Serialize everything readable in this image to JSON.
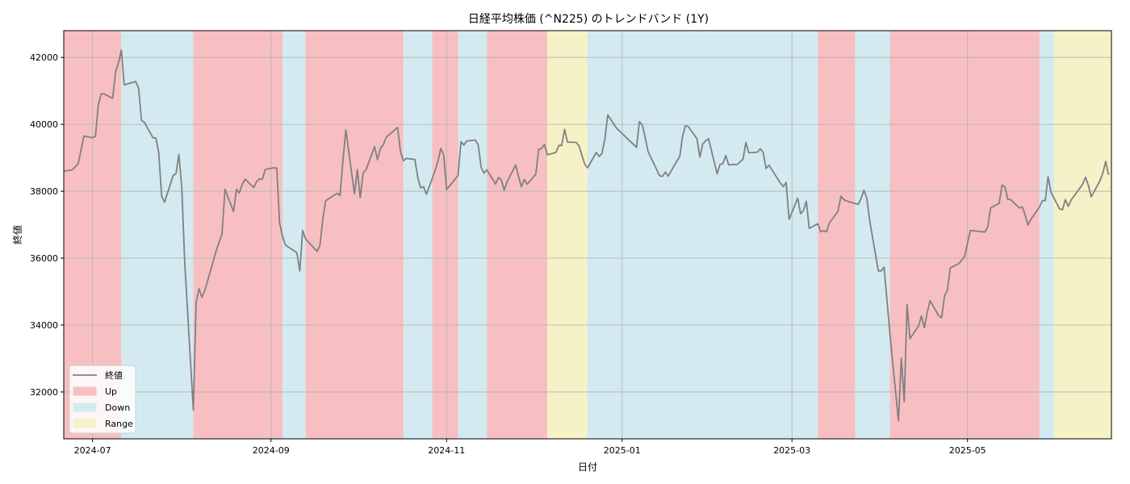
{
  "chart_data": {
    "type": "line",
    "title": "日経平均株価 (^N225) のトレンドバンド (1Y)",
    "xlabel": "日付",
    "ylabel": "終値",
    "xlim": [
      "2024-06-21",
      "2025-06-20"
    ],
    "ylim": [
      30600,
      42800
    ],
    "grid": true,
    "legend_position": "bottom-left",
    "x_ticks": [
      "2024-07",
      "2024-09",
      "2024-11",
      "2025-01",
      "2025-03",
      "2025-05"
    ],
    "y_ticks": [
      32000,
      34000,
      36000,
      38000,
      40000,
      42000
    ],
    "colors": {
      "line": "#808080",
      "up": "#f7bfc2",
      "down": "#d3eaf0",
      "range": "#f6f1c6",
      "grid": "#b0b0b0"
    },
    "legend": [
      {
        "label": "終値",
        "kind": "line"
      },
      {
        "label": "Up",
        "kind": "up"
      },
      {
        "label": "Down",
        "kind": "down"
      },
      {
        "label": "Range",
        "kind": "range"
      }
    ],
    "bands": [
      {
        "start": "2024-06-21",
        "end": "2024-07-11",
        "regime": "up"
      },
      {
        "start": "2024-07-11",
        "end": "2024-08-05",
        "regime": "down"
      },
      {
        "start": "2024-08-05",
        "end": "2024-09-05",
        "regime": "up"
      },
      {
        "start": "2024-09-05",
        "end": "2024-09-13",
        "regime": "down"
      },
      {
        "start": "2024-09-13",
        "end": "2024-10-17",
        "regime": "up"
      },
      {
        "start": "2024-10-17",
        "end": "2024-10-27",
        "regime": "down"
      },
      {
        "start": "2024-10-27",
        "end": "2024-11-05",
        "regime": "up"
      },
      {
        "start": "2024-11-05",
        "end": "2024-11-15",
        "regime": "down"
      },
      {
        "start": "2024-11-15",
        "end": "2024-12-06",
        "regime": "up"
      },
      {
        "start": "2024-12-06",
        "end": "2024-12-20",
        "regime": "range"
      },
      {
        "start": "2024-12-20",
        "end": "2025-03-10",
        "regime": "down"
      },
      {
        "start": "2025-03-10",
        "end": "2025-03-23",
        "regime": "up"
      },
      {
        "start": "2025-03-23",
        "end": "2025-04-04",
        "regime": "down"
      },
      {
        "start": "2025-04-04",
        "end": "2025-05-26",
        "regime": "up"
      },
      {
        "start": "2025-05-26",
        "end": "2025-05-31",
        "regime": "down"
      },
      {
        "start": "2025-05-31",
        "end": "2025-06-20",
        "regime": "range"
      }
    ],
    "series": [
      {
        "name": "終値",
        "points": [
          [
            "2024-06-21",
            38600
          ],
          [
            "2024-06-24",
            38640
          ],
          [
            "2024-06-26",
            38820
          ],
          [
            "2024-06-28",
            39650
          ],
          [
            "2024-07-01",
            39600
          ],
          [
            "2024-07-02",
            39640
          ],
          [
            "2024-07-03",
            40580
          ],
          [
            "2024-07-04",
            40910
          ],
          [
            "2024-07-05",
            40910
          ],
          [
            "2024-07-08",
            40780
          ],
          [
            "2024-07-09",
            41580
          ],
          [
            "2024-07-10",
            41830
          ],
          [
            "2024-07-11",
            42220
          ],
          [
            "2024-07-12",
            41180
          ],
          [
            "2024-07-16",
            41280
          ],
          [
            "2024-07-17",
            41080
          ],
          [
            "2024-07-18",
            40120
          ],
          [
            "2024-07-19",
            40060
          ],
          [
            "2024-07-22",
            39600
          ],
          [
            "2024-07-23",
            39590
          ],
          [
            "2024-07-24",
            39150
          ],
          [
            "2024-07-25",
            37870
          ],
          [
            "2024-07-26",
            37670
          ],
          [
            "2024-07-29",
            38470
          ],
          [
            "2024-07-30",
            38530
          ],
          [
            "2024-07-31",
            39100
          ],
          [
            "2024-08-01",
            38120
          ],
          [
            "2024-08-02",
            35910
          ],
          [
            "2024-08-05",
            31460
          ],
          [
            "2024-08-06",
            34680
          ],
          [
            "2024-08-07",
            35090
          ],
          [
            "2024-08-08",
            34830
          ],
          [
            "2024-08-09",
            35030
          ],
          [
            "2024-08-13",
            36230
          ],
          [
            "2024-08-15",
            36730
          ],
          [
            "2024-08-16",
            38060
          ],
          [
            "2024-08-19",
            37390
          ],
          [
            "2024-08-20",
            38060
          ],
          [
            "2024-08-21",
            37950
          ],
          [
            "2024-08-22",
            38210
          ],
          [
            "2024-08-23",
            38360
          ],
          [
            "2024-08-26",
            38110
          ],
          [
            "2024-08-27",
            38290
          ],
          [
            "2024-08-28",
            38370
          ],
          [
            "2024-08-29",
            38360
          ],
          [
            "2024-08-30",
            38650
          ],
          [
            "2024-09-02",
            38700
          ],
          [
            "2024-09-03",
            38690
          ],
          [
            "2024-09-04",
            37050
          ],
          [
            "2024-09-05",
            36660
          ],
          [
            "2024-09-06",
            36390
          ],
          [
            "2024-09-09",
            36220
          ],
          [
            "2024-09-10",
            36160
          ],
          [
            "2024-09-11",
            35620
          ],
          [
            "2024-09-12",
            36830
          ],
          [
            "2024-09-13",
            36580
          ],
          [
            "2024-09-17",
            36200
          ],
          [
            "2024-09-18",
            36380
          ],
          [
            "2024-09-19",
            37160
          ],
          [
            "2024-09-20",
            37720
          ],
          [
            "2024-09-24",
            37940
          ],
          [
            "2024-09-25",
            37870
          ],
          [
            "2024-09-26",
            38930
          ],
          [
            "2024-09-27",
            39830
          ],
          [
            "2024-09-30",
            37920
          ],
          [
            "2024-10-01",
            38650
          ],
          [
            "2024-10-02",
            37810
          ],
          [
            "2024-10-03",
            38550
          ],
          [
            "2024-10-04",
            38640
          ],
          [
            "2024-10-07",
            39330
          ],
          [
            "2024-10-08",
            38940
          ],
          [
            "2024-10-09",
            39280
          ],
          [
            "2024-10-10",
            39380
          ],
          [
            "2024-10-11",
            39610
          ],
          [
            "2024-10-15",
            39910
          ],
          [
            "2024-10-16",
            39180
          ],
          [
            "2024-10-17",
            38910
          ],
          [
            "2024-10-18",
            38980
          ],
          [
            "2024-10-21",
            38950
          ],
          [
            "2024-10-22",
            38410
          ],
          [
            "2024-10-23",
            38100
          ],
          [
            "2024-10-24",
            38140
          ],
          [
            "2024-10-25",
            37910
          ],
          [
            "2024-10-28",
            38610
          ],
          [
            "2024-10-29",
            38900
          ],
          [
            "2024-10-30",
            39280
          ],
          [
            "2024-10-31",
            39080
          ],
          [
            "2024-11-01",
            38050
          ],
          [
            "2024-11-05",
            38470
          ],
          [
            "2024-11-06",
            39480
          ],
          [
            "2024-11-07",
            39380
          ],
          [
            "2024-11-08",
            39500
          ],
          [
            "2024-11-11",
            39530
          ],
          [
            "2024-11-12",
            39380
          ],
          [
            "2024-11-13",
            38720
          ],
          [
            "2024-11-14",
            38540
          ],
          [
            "2024-11-15",
            38640
          ],
          [
            "2024-11-18",
            38220
          ],
          [
            "2024-11-19",
            38410
          ],
          [
            "2024-11-20",
            38350
          ],
          [
            "2024-11-21",
            38030
          ],
          [
            "2024-11-22",
            38280
          ],
          [
            "2024-11-25",
            38780
          ],
          [
            "2024-11-26",
            38440
          ],
          [
            "2024-11-27",
            38130
          ],
          [
            "2024-11-28",
            38350
          ],
          [
            "2024-11-29",
            38210
          ],
          [
            "2024-12-02",
            38510
          ],
          [
            "2024-12-03",
            39250
          ],
          [
            "2024-12-04",
            39280
          ],
          [
            "2024-12-05",
            39400
          ],
          [
            "2024-12-06",
            39090
          ],
          [
            "2024-12-09",
            39160
          ],
          [
            "2024-12-10",
            39370
          ],
          [
            "2024-12-11",
            39370
          ],
          [
            "2024-12-12",
            39850
          ],
          [
            "2024-12-13",
            39470
          ],
          [
            "2024-12-16",
            39460
          ],
          [
            "2024-12-17",
            39360
          ],
          [
            "2024-12-18",
            39080
          ],
          [
            "2024-12-19",
            38810
          ],
          [
            "2024-12-20",
            38700
          ],
          [
            "2024-12-23",
            39160
          ],
          [
            "2024-12-24",
            39040
          ],
          [
            "2024-12-25",
            39130
          ],
          [
            "2024-12-26",
            39570
          ],
          [
            "2024-12-27",
            40280
          ],
          [
            "2024-12-30",
            39890
          ],
          [
            "2025-01-06",
            39310
          ],
          [
            "2025-01-07",
            40080
          ],
          [
            "2025-01-08",
            39980
          ],
          [
            "2025-01-09",
            39610
          ],
          [
            "2025-01-10",
            39190
          ],
          [
            "2025-01-14",
            38470
          ],
          [
            "2025-01-15",
            38440
          ],
          [
            "2025-01-16",
            38570
          ],
          [
            "2025-01-17",
            38450
          ],
          [
            "2025-01-20",
            38900
          ],
          [
            "2025-01-21",
            39030
          ],
          [
            "2025-01-22",
            39650
          ],
          [
            "2025-01-23",
            39960
          ],
          [
            "2025-01-24",
            39930
          ],
          [
            "2025-01-27",
            39570
          ],
          [
            "2025-01-28",
            39020
          ],
          [
            "2025-01-29",
            39410
          ],
          [
            "2025-01-30",
            39510
          ],
          [
            "2025-01-31",
            39570
          ],
          [
            "2025-02-03",
            38520
          ],
          [
            "2025-02-04",
            38800
          ],
          [
            "2025-02-05",
            38830
          ],
          [
            "2025-02-06",
            39070
          ],
          [
            "2025-02-07",
            38790
          ],
          [
            "2025-02-10",
            38800
          ],
          [
            "2025-02-12",
            38960
          ],
          [
            "2025-02-13",
            39460
          ],
          [
            "2025-02-14",
            39150
          ],
          [
            "2025-02-17",
            39170
          ],
          [
            "2025-02-18",
            39270
          ],
          [
            "2025-02-19",
            39160
          ],
          [
            "2025-02-20",
            38680
          ],
          [
            "2025-02-21",
            38780
          ],
          [
            "2025-02-25",
            38240
          ],
          [
            "2025-02-26",
            38140
          ],
          [
            "2025-02-27",
            38260
          ],
          [
            "2025-02-28",
            37160
          ],
          [
            "2025-03-03",
            37790
          ],
          [
            "2025-03-04",
            37330
          ],
          [
            "2025-03-05",
            37420
          ],
          [
            "2025-03-06",
            37700
          ],
          [
            "2025-03-07",
            36890
          ],
          [
            "2025-03-10",
            37030
          ],
          [
            "2025-03-11",
            36790
          ],
          [
            "2025-03-12",
            36820
          ],
          [
            "2025-03-13",
            36790
          ],
          [
            "2025-03-14",
            37050
          ],
          [
            "2025-03-17",
            37400
          ],
          [
            "2025-03-18",
            37850
          ],
          [
            "2025-03-19",
            37750
          ],
          [
            "2025-03-21",
            37680
          ],
          [
            "2025-03-24",
            37610
          ],
          [
            "2025-03-25",
            37780
          ],
          [
            "2025-03-26",
            38030
          ],
          [
            "2025-03-27",
            37800
          ],
          [
            "2025-03-28",
            37120
          ],
          [
            "2025-03-31",
            35620
          ],
          [
            "2025-04-01",
            35620
          ],
          [
            "2025-04-02",
            35730
          ],
          [
            "2025-04-03",
            34740
          ],
          [
            "2025-04-04",
            33780
          ],
          [
            "2025-04-07",
            31140
          ],
          [
            "2025-04-08",
            33010
          ],
          [
            "2025-04-09",
            31710
          ],
          [
            "2025-04-10",
            34610
          ],
          [
            "2025-04-11",
            33590
          ],
          [
            "2025-04-14",
            33980
          ],
          [
            "2025-04-15",
            34270
          ],
          [
            "2025-04-16",
            33920
          ],
          [
            "2025-04-17",
            34380
          ],
          [
            "2025-04-18",
            34730
          ],
          [
            "2025-04-21",
            34280
          ],
          [
            "2025-04-22",
            34220
          ],
          [
            "2025-04-23",
            34870
          ],
          [
            "2025-04-24",
            35040
          ],
          [
            "2025-04-25",
            35710
          ],
          [
            "2025-04-28",
            35840
          ],
          [
            "2025-04-30",
            36050
          ],
          [
            "2025-05-01",
            36450
          ],
          [
            "2025-05-02",
            36830
          ],
          [
            "2025-05-07",
            36780
          ],
          [
            "2025-05-08",
            36930
          ],
          [
            "2025-05-09",
            37500
          ],
          [
            "2025-05-12",
            37640
          ],
          [
            "2025-05-13",
            38180
          ],
          [
            "2025-05-14",
            38130
          ],
          [
            "2025-05-15",
            37760
          ],
          [
            "2025-05-16",
            37750
          ],
          [
            "2025-05-19",
            37500
          ],
          [
            "2025-05-20",
            37530
          ],
          [
            "2025-05-21",
            37300
          ],
          [
            "2025-05-22",
            36990
          ],
          [
            "2025-05-23",
            37160
          ],
          [
            "2025-05-26",
            37530
          ],
          [
            "2025-05-27",
            37720
          ],
          [
            "2025-05-28",
            37720
          ],
          [
            "2025-05-29",
            38430
          ],
          [
            "2025-05-30",
            37970
          ],
          [
            "2025-06-02",
            37470
          ],
          [
            "2025-06-03",
            37450
          ],
          [
            "2025-06-04",
            37750
          ],
          [
            "2025-06-05",
            37550
          ],
          [
            "2025-06-06",
            37740
          ],
          [
            "2025-06-09",
            38090
          ],
          [
            "2025-06-10",
            38210
          ],
          [
            "2025-06-11",
            38420
          ],
          [
            "2025-06-12",
            38170
          ],
          [
            "2025-06-13",
            37830
          ],
          [
            "2025-06-16",
            38310
          ],
          [
            "2025-06-17",
            38540
          ],
          [
            "2025-06-18",
            38890
          ],
          [
            "2025-06-19",
            38490
          ]
        ]
      }
    ]
  }
}
